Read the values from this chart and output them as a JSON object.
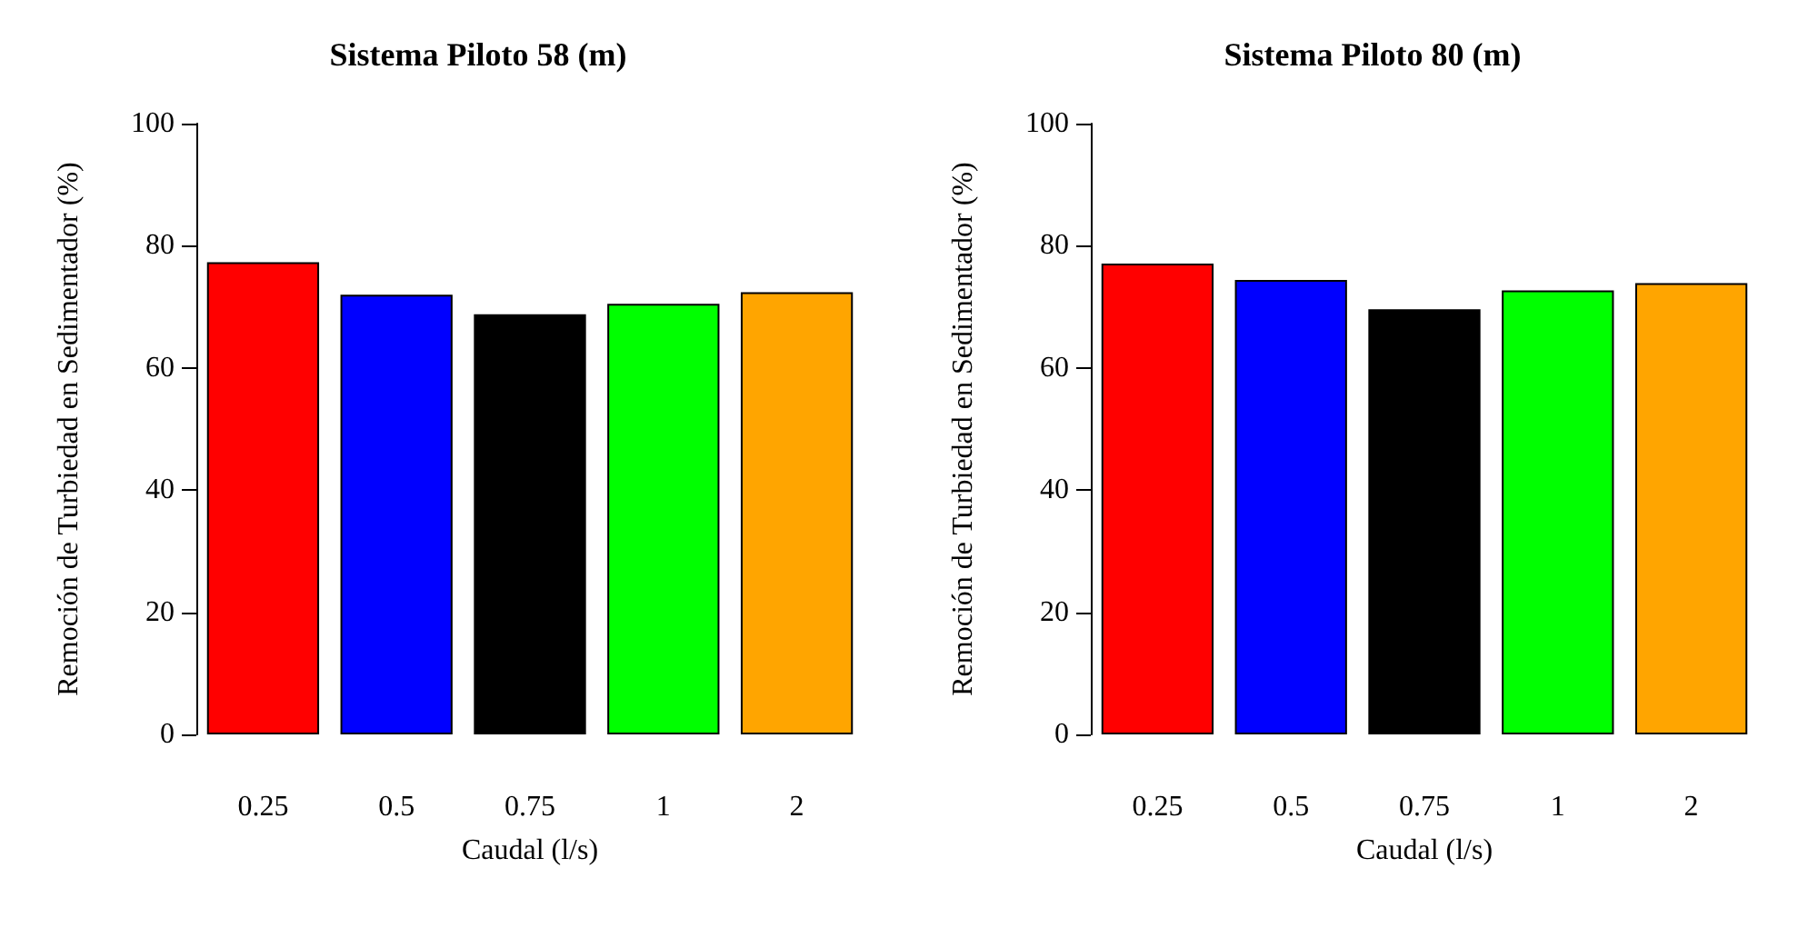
{
  "chart_data": [
    {
      "type": "bar",
      "title": "Sistema Piloto 58 (m)",
      "xlabel": "Caudal (l/s)",
      "ylabel": "Remoción de Turbiedad en Sedimentador (%)",
      "categories": [
        "0.25",
        "0.5",
        "0.75",
        "1",
        "2"
      ],
      "values": [
        77.3,
        72.0,
        68.8,
        70.5,
        72.4
      ],
      "colors": [
        "#ff0000",
        "#0000ff",
        "#000000",
        "#00ff00",
        "#ffa500"
      ],
      "ylim": [
        0,
        100
      ],
      "yticks": [
        0,
        20,
        40,
        60,
        80,
        100
      ],
      "grid": false
    },
    {
      "type": "bar",
      "title": "Sistema Piloto 80 (m)",
      "xlabel": "Caudal (l/s)",
      "ylabel": "Remoción de Turbiedad en Sedimentador (%)",
      "categories": [
        "0.25",
        "0.5",
        "0.75",
        "1",
        "2"
      ],
      "values": [
        77.1,
        74.4,
        69.6,
        72.7,
        73.9
      ],
      "colors": [
        "#ff0000",
        "#0000ff",
        "#000000",
        "#00ff00",
        "#ffa500"
      ],
      "ylim": [
        0,
        100
      ],
      "yticks": [
        0,
        20,
        40,
        60,
        80,
        100
      ],
      "grid": false
    }
  ]
}
